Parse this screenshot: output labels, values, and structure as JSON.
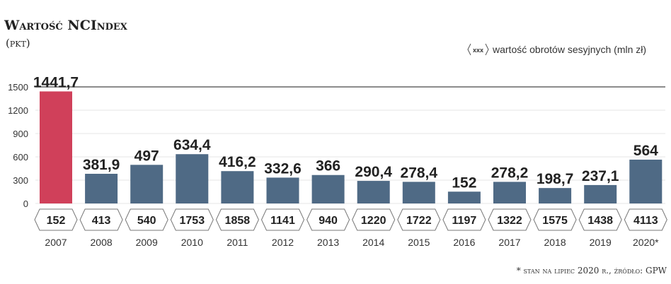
{
  "chart_data": {
    "type": "bar",
    "title": "Wartość NCIndex",
    "subtitle": "(pkt)",
    "categories": [
      "2007",
      "2008",
      "2009",
      "2010",
      "2011",
      "2012",
      "2013",
      "2014",
      "2015",
      "2016",
      "2017",
      "2018",
      "2019",
      "2020*"
    ],
    "values": [
      1441.7,
      381.9,
      497,
      634.4,
      416.2,
      332.6,
      366,
      290.4,
      278.4,
      152,
      278.2,
      198.7,
      237.1,
      564
    ],
    "value_labels": [
      "1441,7",
      "381,9",
      "497",
      "634,4",
      "416,2",
      "332,6",
      "366",
      "290,4",
      "278,4",
      "152",
      "278,2",
      "198,7",
      "237,1",
      "564"
    ],
    "turnover": [
      "152",
      "413",
      "540",
      "1753",
      "1858",
      "1141",
      "940",
      "1220",
      "1722",
      "1197",
      "1322",
      "1575",
      "1438",
      "4113"
    ],
    "yticks": [
      "0",
      "300",
      "600",
      "900",
      "1200",
      "1500"
    ],
    "ylim": [
      0,
      1500
    ],
    "legend": {
      "marker": "xxx",
      "label": "wartość obrotów sesyjnych (mln zł)",
      "placement": "top-right"
    },
    "footnote": "* stan na lipiec 2020 r., źródło: GPW",
    "colors": {
      "highlight": "#d0405a",
      "bar": "#4f6a85"
    }
  }
}
